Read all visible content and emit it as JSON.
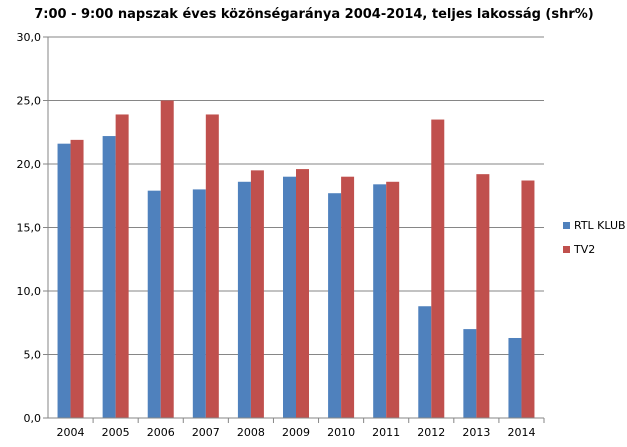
{
  "chart_data": {
    "type": "bar",
    "title": "7:00 - 9:00  napszak éves közönségaránya 2004-2014,  teljes lakosság (shr%)",
    "xlabel": "",
    "ylabel": "",
    "categories": [
      "2004",
      "2005",
      "2006",
      "2007",
      "2008",
      "2009",
      "2010",
      "2011",
      "2012",
      "2013",
      "2014"
    ],
    "series": [
      {
        "name": "RTL KLUB",
        "color": "#4F81BD",
        "values": [
          21.6,
          22.2,
          17.9,
          18.0,
          18.6,
          19.0,
          17.7,
          18.4,
          8.8,
          7.0,
          6.3
        ]
      },
      {
        "name": "TV2",
        "color": "#C0504D",
        "values": [
          21.9,
          23.9,
          25.0,
          23.9,
          19.5,
          19.6,
          19.0,
          18.6,
          23.5,
          19.2,
          18.7
        ]
      }
    ],
    "ylim": [
      0,
      30
    ],
    "yticks": [
      "0,0",
      "5,0",
      "10,0",
      "15,0",
      "20,0",
      "25,0",
      "30,0"
    ],
    "grid": true,
    "legend_position": "right"
  }
}
